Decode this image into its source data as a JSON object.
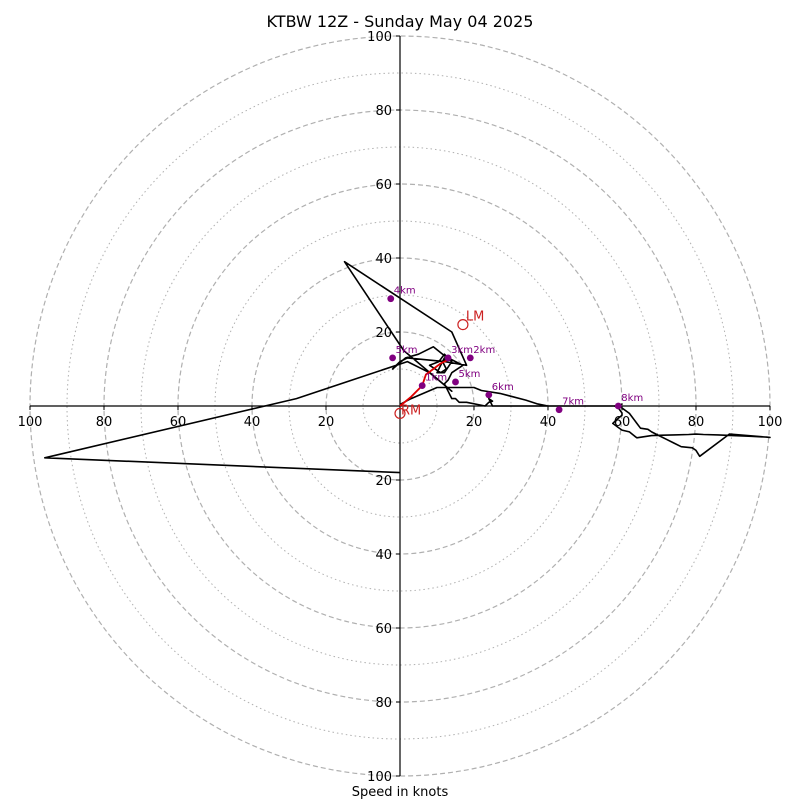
{
  "chart_data": {
    "type": "line",
    "title": "KTBW 12Z - Sunday May 04 2025",
    "xlabel": "Speed in knots",
    "ylabel": "",
    "xlim": [
      -100,
      100
    ],
    "ylim": [
      -100,
      100
    ],
    "rings": {
      "dashed": [
        20,
        40,
        60,
        80,
        100
      ],
      "dotted": [
        10,
        30,
        50,
        70,
        90
      ]
    },
    "x_ticks": [
      {
        "value": -100,
        "label": "100"
      },
      {
        "value": -80,
        "label": "80"
      },
      {
        "value": -60,
        "label": "60"
      },
      {
        "value": -40,
        "label": "40"
      },
      {
        "value": -20,
        "label": "20"
      },
      {
        "value": 20,
        "label": "20"
      },
      {
        "value": 40,
        "label": "40"
      },
      {
        "value": 60,
        "label": "60"
      },
      {
        "value": 80,
        "label": "80"
      },
      {
        "value": 100,
        "label": "100"
      }
    ],
    "y_ticks": [
      {
        "value": 100,
        "label": "100"
      },
      {
        "value": 80,
        "label": "80"
      },
      {
        "value": 60,
        "label": "60"
      },
      {
        "value": 40,
        "label": "40"
      },
      {
        "value": 20,
        "label": "20"
      },
      {
        "value": -20,
        "label": "20"
      },
      {
        "value": -40,
        "label": "40"
      },
      {
        "value": -60,
        "label": "60"
      },
      {
        "value": -80,
        "label": "80"
      },
      {
        "value": -100,
        "label": "100"
      }
    ],
    "hodograph": {
      "color": "#000000",
      "u": [
        0.2,
        3,
        10,
        17,
        20,
        22,
        27,
        34,
        37,
        40,
        43,
        50,
        58,
        60,
        59,
        62,
        65,
        67,
        68,
        70,
        72,
        74,
        76,
        79,
        80,
        81,
        89,
        100,
        99,
        95,
        90,
        86,
        82,
        80,
        78,
        74,
        71,
        68,
        66,
        64,
        63,
        62,
        60,
        59,
        57.5,
        58.5,
        60,
        60,
        59,
        58,
        43,
        37,
        27,
        26,
        25,
        24,
        25,
        24,
        23,
        18,
        16,
        15,
        14,
        13,
        12,
        13,
        14,
        17,
        15,
        13,
        11.5,
        12.5,
        11,
        8,
        10.5,
        12,
        13,
        12,
        10,
        12,
        14,
        9,
        5,
        1.5,
        -2,
        0,
        2,
        12,
        18,
        14,
        -15,
        1,
        14,
        8,
        2,
        -28,
        -96,
        0
      ],
      "v": [
        0.5,
        2,
        5,
        5,
        5,
        4.2,
        3.4,
        1.6,
        0.6,
        0,
        0,
        0,
        0,
        0.5,
        0.2,
        -2,
        -6,
        -6.3,
        -7,
        -8,
        -9,
        -10,
        -11,
        -11.3,
        -12,
        -13.6,
        -7.6,
        -8.5,
        -8.4,
        -8.2,
        -8.0,
        -7.8,
        -7.7,
        -7.6,
        -7.7,
        -7.8,
        -7.9,
        -8.0,
        -8.3,
        -8.6,
        -7.8,
        -7.0,
        -6.5,
        -5.8,
        -4.7,
        -3.7,
        -2.5,
        -1.9,
        -0.5,
        0,
        0,
        0,
        0,
        0,
        0,
        2,
        1.3,
        1,
        0,
        1,
        1,
        2,
        2,
        4,
        6,
        7,
        9,
        11,
        12,
        13,
        12,
        10,
        9,
        11,
        12,
        14,
        13,
        13,
        9,
        9,
        12,
        16,
        14,
        13,
        10,
        12,
        13,
        12,
        11,
        20,
        39,
        15,
        4,
        9,
        12,
        2,
        -14,
        -18,
        2
      ],
      "comment_u_v": "wind components in knots (u east, v north)"
    },
    "markers_heights": [
      {
        "label": "2km",
        "u": 19,
        "v": 13
      },
      {
        "label": "4km",
        "u": -2.5,
        "v": 29
      },
      {
        "label": "5km",
        "u": -2,
        "v": 13
      },
      {
        "label": "3km",
        "u": 13,
        "v": 13
      },
      {
        "label": "5km",
        "u": 15,
        "v": 6.5
      },
      {
        "label": "6km",
        "u": 24,
        "v": 3
      },
      {
        "label": "7km",
        "u": 43,
        "v": -1
      },
      {
        "label": "8km",
        "u": 59,
        "v": 0
      },
      {
        "label": "1km",
        "u": 6,
        "v": 5.5
      }
    ],
    "shear_vector": {
      "color": "#e00000",
      "points": [
        [
          0,
          0
        ],
        [
          3,
          2.5
        ],
        [
          6,
          5.5
        ],
        [
          7,
          8.5
        ],
        [
          9,
          10
        ],
        [
          11,
          11.5
        ],
        [
          13,
          12.5
        ]
      ]
    },
    "storm_motion": [
      {
        "label": "LM",
        "u": 17,
        "v": 22
      },
      {
        "label": "RM",
        "u": 0,
        "v": -2
      }
    ],
    "colors": {
      "hodograph": "#000000",
      "markers": "#800080",
      "shear": "#e00000",
      "storm_motion": "#cc2222",
      "rings": "#b0b0b0",
      "axes": "#000000"
    }
  }
}
